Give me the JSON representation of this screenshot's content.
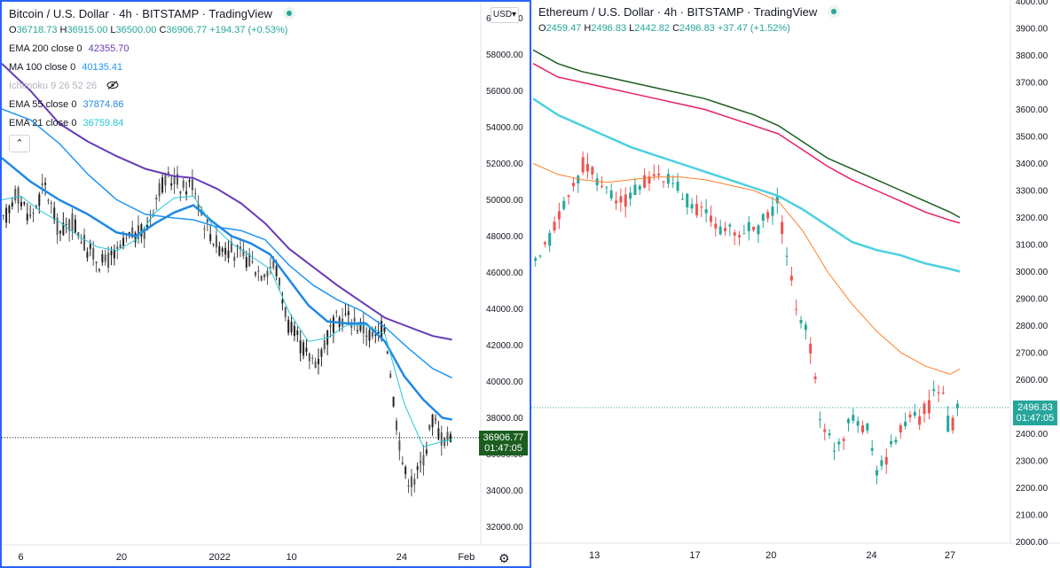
{
  "chart_data": [
    {
      "type": "candlestick",
      "title": "Bitcoin / U.S. Dollar · 4h · BITSTAMP · TradingView",
      "ohlc": {
        "open": "36718.73",
        "high": "36915.00",
        "low": "36500.00",
        "close": "36906.77",
        "change": "+194.37 (+0.53%)"
      },
      "last_price": "36906.77",
      "countdown": "01:47:05",
      "currency": "USD",
      "ylim": [
        31000,
        60900
      ],
      "yticks": [
        32000,
        34000,
        36000,
        38000,
        40000,
        42000,
        44000,
        46000,
        48000,
        50000,
        52000,
        54000,
        56000,
        58000,
        60000
      ],
      "ytick_labels": [
        "32000.00",
        "34000.00",
        "36000.00",
        "38000.00",
        "40000.00",
        "42000.00",
        "44000.00",
        "46000.00",
        "48000.00",
        "50000.00",
        "52000.00",
        "54000.00",
        "56000.00",
        "58000.00",
        "60000.00"
      ],
      "xticks": [
        {
          "label": "6",
          "pos": 0.04
        },
        {
          "label": "20",
          "pos": 0.25
        },
        {
          "label": "2022",
          "pos": 0.455
        },
        {
          "label": "10",
          "pos": 0.605
        },
        {
          "label": "24",
          "pos": 0.835
        },
        {
          "label": "Feb",
          "pos": 0.97
        }
      ],
      "indicators": [
        {
          "name": "EMA 200 close 0",
          "value": "42355.70",
          "color": "#673ab7",
          "visible": true
        },
        {
          "name": "MA 100 close 0",
          "value": "40135.41",
          "color": "#2196f3",
          "visible": true
        },
        {
          "name": "Ichimoku 9 26 52 26",
          "value": "",
          "color": "#b2b5be",
          "visible": false
        },
        {
          "name": "EMA 55 close 0",
          "value": "37874.86",
          "color": "#1e88e5",
          "visible": true
        },
        {
          "name": "EMA 21 close 0",
          "value": "36759.84",
          "color": "#26c6da",
          "visible": true
        }
      ],
      "price_path": [
        [
          0,
          48500
        ],
        [
          0.03,
          50500
        ],
        [
          0.06,
          49000
        ],
        [
          0.09,
          50800
        ],
        [
          0.12,
          48200
        ],
        [
          0.15,
          48800
        ],
        [
          0.18,
          47200
        ],
        [
          0.21,
          46500
        ],
        [
          0.24,
          47000
        ],
        [
          0.27,
          48000
        ],
        [
          0.3,
          48200
        ],
        [
          0.33,
          50800
        ],
        [
          0.36,
          51200
        ],
        [
          0.38,
          50600
        ],
        [
          0.4,
          51000
        ],
        [
          0.42,
          49000
        ],
        [
          0.45,
          47500
        ],
        [
          0.48,
          47200
        ],
        [
          0.51,
          46800
        ],
        [
          0.54,
          46000
        ],
        [
          0.57,
          46500
        ],
        [
          0.6,
          43000
        ],
        [
          0.62,
          42200
        ],
        [
          0.64,
          41300
        ],
        [
          0.66,
          41200
        ],
        [
          0.68,
          42500
        ],
        [
          0.7,
          43400
        ],
        [
          0.72,
          43600
        ],
        [
          0.74,
          43200
        ],
        [
          0.76,
          42800
        ],
        [
          0.78,
          42300
        ],
        [
          0.8,
          43200
        ],
        [
          0.82,
          38500
        ],
        [
          0.84,
          35000
        ],
        [
          0.86,
          34400
        ],
        [
          0.88,
          35800
        ],
        [
          0.9,
          38000
        ],
        [
          0.92,
          36800
        ],
        [
          0.94,
          36900
        ]
      ],
      "series": [
        {
          "name": "EMA 200",
          "color": "#673ab7",
          "width": 2,
          "points": [
            [
              0,
              57500
            ],
            [
              0.06,
              56000
            ],
            [
              0.12,
              54200
            ],
            [
              0.18,
              53200
            ],
            [
              0.24,
              52400
            ],
            [
              0.3,
              51700
            ],
            [
              0.36,
              51300
            ],
            [
              0.4,
              51200
            ],
            [
              0.45,
              50600
            ],
            [
              0.5,
              49800
            ],
            [
              0.55,
              48700
            ],
            [
              0.6,
              47300
            ],
            [
              0.65,
              46300
            ],
            [
              0.7,
              45300
            ],
            [
              0.75,
              44400
            ],
            [
              0.8,
              43500
            ],
            [
              0.85,
              43000
            ],
            [
              0.9,
              42500
            ],
            [
              0.94,
              42300
            ]
          ]
        },
        {
          "name": "MA 100",
          "color": "#2196f3",
          "width": 1.5,
          "points": [
            [
              0,
              55000
            ],
            [
              0.06,
              54400
            ],
            [
              0.12,
              53100
            ],
            [
              0.18,
              51400
            ],
            [
              0.24,
              50000
            ],
            [
              0.3,
              49200
            ],
            [
              0.36,
              49000
            ],
            [
              0.4,
              48900
            ],
            [
              0.45,
              48500
            ],
            [
              0.5,
              48300
            ],
            [
              0.55,
              47800
            ],
            [
              0.6,
              46400
            ],
            [
              0.65,
              45300
            ],
            [
              0.7,
              44500
            ],
            [
              0.75,
              43900
            ],
            [
              0.8,
              43000
            ],
            [
              0.85,
              41800
            ],
            [
              0.9,
              40700
            ],
            [
              0.94,
              40200
            ]
          ]
        },
        {
          "name": "EMA 55",
          "color": "#1e88e5",
          "width": 2.5,
          "points": [
            [
              0,
              52300
            ],
            [
              0.06,
              51000
            ],
            [
              0.12,
              50000
            ],
            [
              0.18,
              49200
            ],
            [
              0.24,
              48200
            ],
            [
              0.28,
              48000
            ],
            [
              0.32,
              48700
            ],
            [
              0.36,
              49300
            ],
            [
              0.4,
              49700
            ],
            [
              0.44,
              48800
            ],
            [
              0.48,
              48000
            ],
            [
              0.52,
              47600
            ],
            [
              0.56,
              47000
            ],
            [
              0.6,
              45600
            ],
            [
              0.64,
              44200
            ],
            [
              0.68,
              43300
            ],
            [
              0.72,
              43200
            ],
            [
              0.76,
              43200
            ],
            [
              0.8,
              42200
            ],
            [
              0.84,
              40300
            ],
            [
              0.88,
              39000
            ],
            [
              0.92,
              38000
            ],
            [
              0.94,
              37900
            ]
          ]
        },
        {
          "name": "EMA 21",
          "color": "#26c6da",
          "width": 1,
          "points": [
            [
              0,
              50000
            ],
            [
              0.04,
              50200
            ],
            [
              0.08,
              49400
            ],
            [
              0.12,
              48800
            ],
            [
              0.16,
              48000
            ],
            [
              0.2,
              47400
            ],
            [
              0.24,
              47200
            ],
            [
              0.28,
              47800
            ],
            [
              0.32,
              49300
            ],
            [
              0.36,
              50100
            ],
            [
              0.4,
              50200
            ],
            [
              0.44,
              48600
            ],
            [
              0.48,
              47600
            ],
            [
              0.52,
              46900
            ],
            [
              0.56,
              46200
            ],
            [
              0.6,
              43800
            ],
            [
              0.64,
              42200
            ],
            [
              0.68,
              42400
            ],
            [
              0.72,
              43100
            ],
            [
              0.76,
              43100
            ],
            [
              0.8,
              42600
            ],
            [
              0.84,
              38800
            ],
            [
              0.88,
              36400
            ],
            [
              0.92,
              36700
            ],
            [
              0.94,
              36800
            ]
          ]
        }
      ]
    },
    {
      "type": "candlestick",
      "title": "Ethereum / U.S. Dollar · 4h · BITSTAMP · TradingView",
      "ohlc": {
        "open": "2459.47",
        "high": "2496.83",
        "low": "2442.82",
        "close": "2496.83",
        "change": "+37.47 (+1.52%)"
      },
      "last_price": "2496.83",
      "countdown": "01:47:05",
      "ylim": [
        1995,
        4005
      ],
      "yticks": [
        2000,
        2100,
        2200,
        2300,
        2400,
        2500,
        2600,
        2700,
        2800,
        2900,
        3000,
        3100,
        3200,
        3300,
        3400,
        3500,
        3600,
        3700,
        3800,
        3900,
        4000
      ],
      "ytick_labels": [
        "2000.00",
        "2100.00",
        "2200.00",
        "2300.00",
        "2400.00",
        "2500.00",
        "2600.00",
        "2700.00",
        "2800.00",
        "2900.00",
        "3000.00",
        "3100.00",
        "3200.00",
        "3300.00",
        "3400.00",
        "3500.00",
        "3600.00",
        "3700.00",
        "3800.00",
        "3900.00",
        "4000.00"
      ],
      "xticks": [
        {
          "label": "13",
          "pos": 0.125
        },
        {
          "label": "17",
          "pos": 0.33
        },
        {
          "label": "20",
          "pos": 0.485
        },
        {
          "label": "24",
          "pos": 0.69
        },
        {
          "label": "27",
          "pos": 0.85
        }
      ],
      "price_path": [
        [
          0,
          3000
        ],
        [
          0.03,
          3100
        ],
        [
          0.05,
          3200
        ],
        [
          0.08,
          3300
        ],
        [
          0.1,
          3400
        ],
        [
          0.12,
          3360
        ],
        [
          0.15,
          3300
        ],
        [
          0.18,
          3250
        ],
        [
          0.21,
          3300
        ],
        [
          0.24,
          3350
        ],
        [
          0.27,
          3340
        ],
        [
          0.3,
          3300
        ],
        [
          0.33,
          3240
        ],
        [
          0.36,
          3200
        ],
        [
          0.39,
          3150
        ],
        [
          0.42,
          3140
        ],
        [
          0.45,
          3160
        ],
        [
          0.48,
          3200
        ],
        [
          0.5,
          3260
        ],
        [
          0.52,
          3000
        ],
        [
          0.54,
          2860
        ],
        [
          0.57,
          2700
        ],
        [
          0.59,
          2400
        ],
        [
          0.62,
          2350
        ],
        [
          0.65,
          2480
        ],
        [
          0.68,
          2420
        ],
        [
          0.7,
          2280
        ],
        [
          0.72,
          2300
        ],
        [
          0.75,
          2430
        ],
        [
          0.78,
          2450
        ],
        [
          0.81,
          2500
        ],
        [
          0.83,
          2600
        ],
        [
          0.85,
          2400
        ],
        [
          0.87,
          2500
        ]
      ],
      "series": [
        {
          "name": "dark green MA",
          "color": "#1b5e20",
          "width": 1.5,
          "points": [
            [
              0,
              3820
            ],
            [
              0.05,
              3770
            ],
            [
              0.1,
              3740
            ],
            [
              0.15,
              3720
            ],
            [
              0.2,
              3700
            ],
            [
              0.25,
              3680
            ],
            [
              0.3,
              3660
            ],
            [
              0.35,
              3640
            ],
            [
              0.4,
              3610
            ],
            [
              0.45,
              3580
            ],
            [
              0.5,
              3540
            ],
            [
              0.55,
              3480
            ],
            [
              0.6,
              3420
            ],
            [
              0.65,
              3380
            ],
            [
              0.7,
              3340
            ],
            [
              0.75,
              3300
            ],
            [
              0.8,
              3260
            ],
            [
              0.85,
              3220
            ],
            [
              0.87,
              3200
            ]
          ]
        },
        {
          "name": "crimson MA",
          "color": "#e91e63",
          "width": 1.5,
          "points": [
            [
              0,
              3770
            ],
            [
              0.05,
              3720
            ],
            [
              0.1,
              3700
            ],
            [
              0.15,
              3680
            ],
            [
              0.2,
              3660
            ],
            [
              0.25,
              3640
            ],
            [
              0.3,
              3620
            ],
            [
              0.35,
              3600
            ],
            [
              0.4,
              3570
            ],
            [
              0.45,
              3540
            ],
            [
              0.5,
              3510
            ],
            [
              0.55,
              3450
            ],
            [
              0.6,
              3390
            ],
            [
              0.65,
              3340
            ],
            [
              0.7,
              3300
            ],
            [
              0.75,
              3260
            ],
            [
              0.8,
              3220
            ],
            [
              0.85,
              3190
            ],
            [
              0.87,
              3180
            ]
          ]
        },
        {
          "name": "turquoise MA",
          "color": "#4dd0e1",
          "width": 2.5,
          "points": [
            [
              0,
              3640
            ],
            [
              0.05,
              3580
            ],
            [
              0.1,
              3540
            ],
            [
              0.15,
              3500
            ],
            [
              0.2,
              3460
            ],
            [
              0.25,
              3430
            ],
            [
              0.3,
              3400
            ],
            [
              0.35,
              3370
            ],
            [
              0.4,
              3340
            ],
            [
              0.45,
              3310
            ],
            [
              0.5,
              3280
            ],
            [
              0.55,
              3230
            ],
            [
              0.6,
              3170
            ],
            [
              0.65,
              3110
            ],
            [
              0.7,
              3080
            ],
            [
              0.75,
              3060
            ],
            [
              0.8,
              3030
            ],
            [
              0.85,
              3010
            ],
            [
              0.87,
              3000
            ]
          ]
        },
        {
          "name": "orange MA",
          "color": "#ff7f27",
          "width": 1,
          "points": [
            [
              0,
              3400
            ],
            [
              0.05,
              3360
            ],
            [
              0.1,
              3340
            ],
            [
              0.15,
              3330
            ],
            [
              0.2,
              3340
            ],
            [
              0.25,
              3350
            ],
            [
              0.3,
              3350
            ],
            [
              0.35,
              3340
            ],
            [
              0.4,
              3320
            ],
            [
              0.45,
              3300
            ],
            [
              0.5,
              3260
            ],
            [
              0.55,
              3150
            ],
            [
              0.6,
              3000
            ],
            [
              0.65,
              2880
            ],
            [
              0.7,
              2780
            ],
            [
              0.75,
              2700
            ],
            [
              0.8,
              2650
            ],
            [
              0.85,
              2620
            ],
            [
              0.87,
              2640
            ]
          ]
        }
      ]
    }
  ]
}
